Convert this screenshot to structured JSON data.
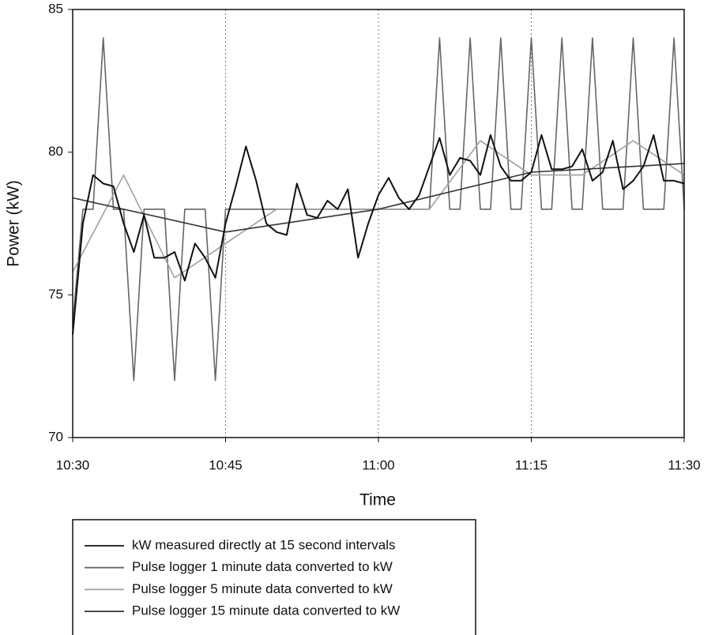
{
  "chart_data": {
    "type": "line",
    "x_label": "Time",
    "y_label": "Power (kW)",
    "xlim": [
      "10:30",
      "11:30"
    ],
    "xticks": [
      "10:30",
      "10:45",
      "11:00",
      "11:15",
      "11:30"
    ],
    "ylim": [
      70,
      85
    ],
    "yticks": [
      70,
      75,
      80,
      85
    ],
    "xgrid": true,
    "legend": "bottom",
    "series": [
      {
        "name": "kW measured directly at 15 second intervals",
        "color": "#111111",
        "x": [
          "10:30",
          "10:31",
          "10:32",
          "10:33",
          "10:34",
          "10:35",
          "10:36",
          "10:37",
          "10:38",
          "10:39",
          "10:40",
          "10:41",
          "10:42",
          "10:43",
          "10:44",
          "10:45",
          "10:46",
          "10:47",
          "10:48",
          "10:49",
          "10:50",
          "10:51",
          "10:52",
          "10:53",
          "10:54",
          "10:55",
          "10:56",
          "10:57",
          "10:58",
          "10:59",
          "11:00",
          "11:01",
          "11:02",
          "11:03",
          "11:04",
          "11:05",
          "11:06",
          "11:07",
          "11:08",
          "11:09",
          "11:10",
          "11:11",
          "11:12",
          "11:13",
          "11:14",
          "11:15",
          "11:16",
          "11:17",
          "11:18",
          "11:19",
          "11:20",
          "11:21",
          "11:22",
          "11:23",
          "11:24",
          "11:25",
          "11:26",
          "11:27",
          "11:28",
          "11:29",
          "11:30"
        ],
        "values": [
          73.6,
          77.5,
          79.2,
          78.9,
          78.8,
          77.5,
          76.5,
          77.8,
          76.3,
          76.3,
          76.5,
          75.5,
          76.8,
          76.3,
          75.6,
          77.5,
          78.8,
          80.2,
          79.0,
          77.5,
          77.2,
          77.1,
          78.9,
          77.8,
          77.7,
          78.3,
          78.0,
          78.7,
          76.3,
          77.5,
          78.5,
          79.1,
          78.4,
          78.0,
          78.5,
          79.5,
          80.5,
          79.2,
          79.8,
          79.7,
          79.2,
          80.6,
          79.5,
          79.0,
          79.0,
          79.3,
          80.6,
          79.4,
          79.4,
          79.5,
          80.1,
          79.0,
          79.3,
          80.4,
          78.7,
          79.0,
          79.5,
          80.6,
          79.0,
          79.0,
          78.9
        ]
      },
      {
        "name": "Pulse logger 1 minute data converted to kW",
        "color": "#666666",
        "x": [
          "10:30",
          "10:31",
          "10:32",
          "10:33",
          "10:34",
          "10:35",
          "10:36",
          "10:37",
          "10:38",
          "10:39",
          "10:40",
          "10:41",
          "10:42",
          "10:43",
          "10:44",
          "10:45",
          "10:46",
          "10:47",
          "10:48",
          "10:49",
          "10:50",
          "10:51",
          "10:52",
          "10:53",
          "10:54",
          "10:55",
          "10:56",
          "10:57",
          "10:58",
          "10:59",
          "11:00",
          "11:01",
          "11:02",
          "11:03",
          "11:04",
          "11:05",
          "11:06",
          "11:07",
          "11:08",
          "11:09",
          "11:10",
          "11:11",
          "11:12",
          "11:13",
          "11:14",
          "11:15",
          "11:16",
          "11:17",
          "11:18",
          "11:19",
          "11:20",
          "11:21",
          "11:22",
          "11:23",
          "11:24",
          "11:25",
          "11:26",
          "11:27",
          "11:28",
          "11:29",
          "11:30"
        ],
        "values": [
          74,
          78,
          78,
          84,
          78,
          78,
          72,
          78,
          78,
          78,
          72,
          78,
          78,
          78,
          72,
          78,
          78,
          78,
          78,
          78,
          78,
          78,
          78,
          78,
          78,
          78,
          78,
          78,
          78,
          78,
          78,
          78,
          78,
          78,
          78,
          78,
          84,
          78,
          78,
          84,
          78,
          78,
          84,
          78,
          78,
          84,
          78,
          78,
          84,
          78,
          78,
          84,
          78,
          78,
          78,
          84,
          78,
          78,
          78,
          84,
          78
        ]
      },
      {
        "name": "Pulse logger 5 minute data converted to kW",
        "color": "#a0a0a0",
        "x": [
          "10:30",
          "10:35",
          "10:40",
          "10:45",
          "10:50",
          "10:55",
          "11:00",
          "11:05",
          "11:10",
          "11:15",
          "11:20",
          "11:25",
          "11:30"
        ],
        "values": [
          75.8,
          79.2,
          75.6,
          76.8,
          78,
          78,
          78,
          78,
          80.4,
          79.2,
          79.2,
          80.4,
          79.2
        ]
      },
      {
        "name": "Pulse logger 15 minute data converted to kW",
        "color": "#333333",
        "x": [
          "10:30",
          "10:45",
          "11:00",
          "11:15",
          "11:30"
        ],
        "values": [
          78.4,
          77.2,
          78.0,
          79.3,
          79.6
        ]
      }
    ]
  }
}
